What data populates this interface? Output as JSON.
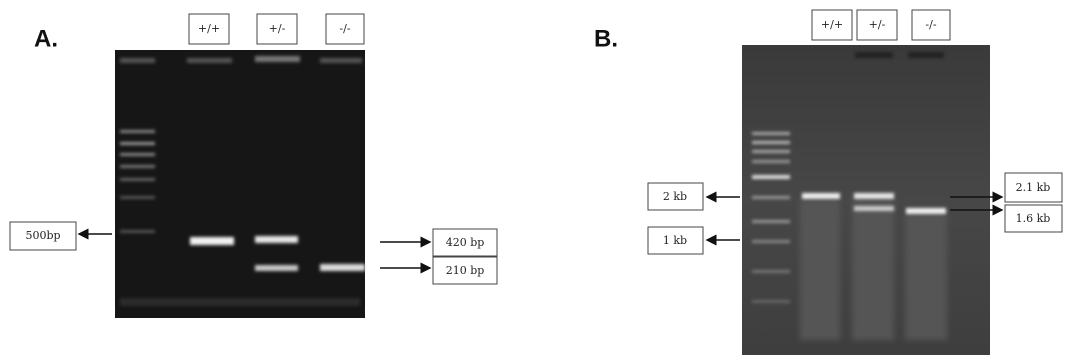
{
  "panels": [
    {
      "label": "A.",
      "lanes": [
        "+/+",
        "+/-",
        "-/-"
      ],
      "left_labels": [
        "500bp"
      ],
      "right_labels": [
        "420 bp",
        "210 bp"
      ]
    },
    {
      "label": "B.",
      "lanes": [
        "+/+",
        "+/-",
        "-/-"
      ],
      "left_labels": [
        "2 kb",
        "1 kb"
      ],
      "right_labels": [
        "2.1 kb",
        "1.6 kb"
      ]
    }
  ]
}
